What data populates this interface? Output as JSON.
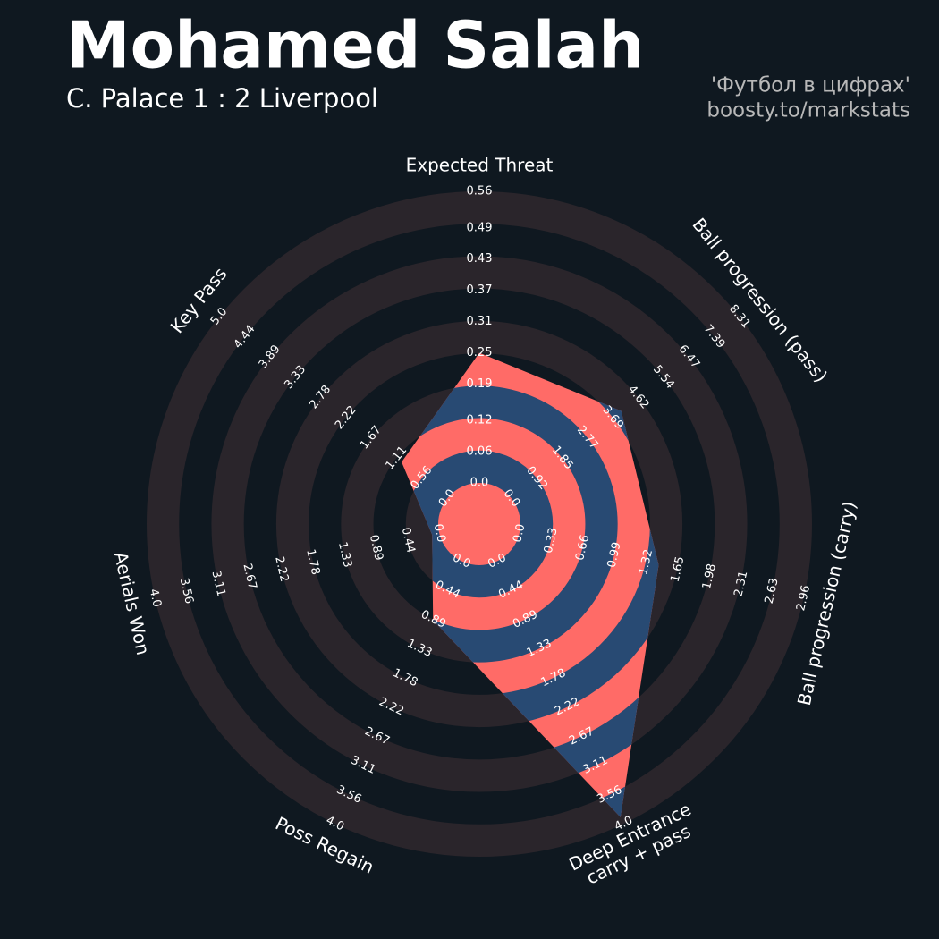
{
  "chart_data": {
    "type": "radar",
    "title": "Mohamed Salah",
    "subtitle": "C. Palace 1 : 2 Liverpool",
    "credit": [
      "'Футбол в цифрах'",
      "boosty.to/markstats"
    ],
    "params": [
      {
        "name": "Expected Threat",
        "lim": [
          0,
          0.56
        ],
        "ticks": [
          {
            "value": 0,
            "label": "0.0"
          },
          0.06,
          0.12,
          0.19,
          0.25,
          0.31,
          0.37,
          0.43,
          0.49,
          0.56
        ]
      },
      {
        "name": "Ball progression (pass)",
        "lim": [
          0,
          8.31
        ],
        "ticks": [
          {
            "value": 0,
            "label": "0.0"
          },
          0.92,
          1.85,
          2.77,
          3.69,
          4.62,
          5.54,
          6.47,
          7.39,
          8.31
        ]
      },
      {
        "name": "Ball progression (carry)",
        "lim": [
          0,
          2.96
        ],
        "ticks": [
          {
            "value": 0,
            "label": "0.0"
          },
          0.33,
          0.66,
          0.99,
          1.32,
          1.65,
          1.98,
          2.31,
          2.63,
          2.96
        ]
      },
      {
        "name": "Deep Entrance\ncarry + pass",
        "lim": [
          0,
          4
        ],
        "ticks": [
          {
            "value": 0,
            "label": "0.0"
          },
          0.44,
          0.89,
          1.33,
          1.78,
          2.22,
          2.67,
          3.11,
          3.56,
          {
            "value": 4,
            "label": "4.0"
          }
        ]
      },
      {
        "name": "Poss Regain",
        "lim": [
          0,
          4
        ],
        "ticks": [
          {
            "value": 0,
            "label": "0.0"
          },
          0.44,
          0.89,
          1.33,
          1.78,
          2.22,
          2.67,
          3.11,
          3.56,
          {
            "value": 4,
            "label": "4.0"
          }
        ]
      },
      {
        "name": "Aerials Won",
        "lim": [
          0,
          4
        ],
        "ticks": [
          {
            "value": 0,
            "label": "0.0"
          },
          0.44,
          0.89,
          1.33,
          1.78,
          2.22,
          2.67,
          3.11,
          3.56,
          {
            "value": 4,
            "label": "4.0"
          }
        ]
      },
      {
        "name": "Key Pass",
        "lim": [
          0,
          5
        ],
        "ticks": [
          {
            "value": 0,
            "label": "0.0"
          },
          0.56,
          1.11,
          1.67,
          2.22,
          2.78,
          3.33,
          3.89,
          4.44,
          {
            "value": 5,
            "label": "5.0"
          }
        ]
      }
    ],
    "series": [
      {
        "values": [
          0.25,
          4.0,
          1.45,
          3.9,
          0.9,
          0.1,
          1.0
        ],
        "colors": [
          "#ff6b67",
          "#284a73"
        ]
      }
    ],
    "ring_color": "#2a252b"
  }
}
